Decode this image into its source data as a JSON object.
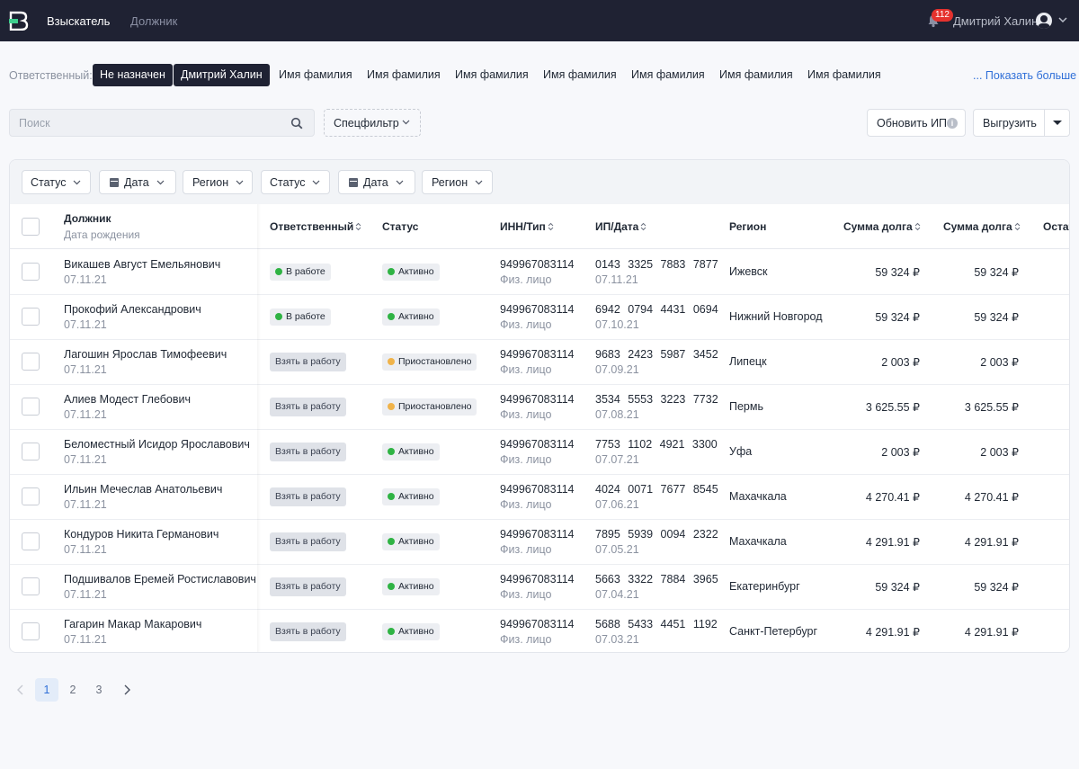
{
  "topbar": {
    "tab_active": "Взыскатель",
    "tab_inactive": "Должник",
    "notifications_count": "112",
    "user_name": "Дмитрий Халин"
  },
  "responsible": {
    "label": "Ответственный:",
    "chips": [
      "Не назначен",
      "Дмитрий Халин",
      "Имя фамилия",
      "Имя фамилия",
      "Имя фамилия",
      "Имя фамилия",
      "Имя фамилия",
      "Имя фамилия",
      "Имя фамилия"
    ],
    "show_more": "... Показать больше"
  },
  "search": {
    "placeholder": "Поиск"
  },
  "specfilter_label": "Спецфильтр",
  "update_button": "Обновить ИП",
  "export_button": "Выгрузить",
  "filters": [
    "Статус",
    "Дата",
    "Регион",
    "Статус",
    "Дата",
    "Регион"
  ],
  "columns": {
    "debtor": "Должник",
    "dob": "Дата рождения",
    "responsible": "Ответственный",
    "status": "Статус",
    "inn": "ИНН/Тип",
    "ip": "ИП/Дата",
    "region": "Регион",
    "sum1": "Сумма долга",
    "sum2": "Сумма долга",
    "remainder": "Остат"
  },
  "rows": [
    {
      "name": "Викашев Август Емельянович",
      "dob": "07.11.21",
      "responsible": "В работе",
      "status": "Активно",
      "inn": "949967083114",
      "type": "Физ. лицо",
      "ip": "0143 3325 7883 7877",
      "ip_date": "07.11.21",
      "region": "Ижевск",
      "sum1": "59 324 ₽",
      "sum2": "59 324 ₽"
    },
    {
      "name": "Прокофий Александрович",
      "dob": "07.11.21",
      "responsible": "В работе",
      "status": "Активно",
      "inn": "949967083114",
      "type": "Физ. лицо",
      "ip": "6942 0794 4431 0694",
      "ip_date": "07.10.21",
      "region": "Нижний Новгород",
      "sum1": "59 324 ₽",
      "sum2": "59 324 ₽"
    },
    {
      "name": "Лагошин Ярослав Тимофеевич",
      "dob": "07.11.21",
      "responsible": "Взять в работу",
      "status": "Приостановлено",
      "inn": "949967083114",
      "type": "Физ. лицо",
      "ip": "9683 2423 5987 3452",
      "ip_date": "07.09.21",
      "region": "Липецк",
      "sum1": "2 003 ₽",
      "sum2": "2 003 ₽"
    },
    {
      "name": "Алиев Модест Глебович",
      "dob": "07.11.21",
      "responsible": "Взять в работу",
      "status": "Приостановлено",
      "inn": "949967083114",
      "type": "Физ. лицо",
      "ip": "3534 5553 3223 7732",
      "ip_date": "07.08.21",
      "region": "Пермь",
      "sum1": "3 625.55 ₽",
      "sum2": "3 625.55 ₽"
    },
    {
      "name": "Беломестный Исидор Ярославович",
      "dob": "07.11.21",
      "responsible": "Взять в работу",
      "status": "Активно",
      "inn": "949967083114",
      "type": "Физ. лицо",
      "ip": "7753 1102 4921 3300",
      "ip_date": "07.07.21",
      "region": "Уфа",
      "sum1": "2 003 ₽",
      "sum2": "2 003 ₽"
    },
    {
      "name": "Ильин Мечеслав Анатольевич",
      "dob": "07.11.21",
      "responsible": "Взять в работу",
      "status": "Активно",
      "inn": "949967083114",
      "type": "Физ. лицо",
      "ip": "4024 0071 7677 8545",
      "ip_date": "07.06.21",
      "region": "Махачкала",
      "sum1": "4 270.41 ₽",
      "sum2": "4 270.41 ₽"
    },
    {
      "name": "Кондуров Никита Германович",
      "dob": "07.11.21",
      "responsible": "Взять в работу",
      "status": "Активно",
      "inn": "949967083114",
      "type": "Физ. лицо",
      "ip": "7895 5939 0094 2322",
      "ip_date": "07.05.21",
      "region": "Махачкала",
      "sum1": "4 291.91 ₽",
      "sum2": "4 291.91 ₽"
    },
    {
      "name": "Подшивалов Еремей Ростиславович",
      "dob": "07.11.21",
      "responsible": "Взять в работу",
      "status": "Активно",
      "inn": "949967083114",
      "type": "Физ. лицо",
      "ip": "5663 3322 7884 3965",
      "ip_date": "07.04.21",
      "region": "Екатеринбург",
      "sum1": "59 324 ₽",
      "sum2": "59 324 ₽"
    },
    {
      "name": "Гагарин Макар Макарович",
      "dob": "07.11.21",
      "responsible": "Взять в работу",
      "status": "Активно",
      "inn": "949967083114",
      "type": "Физ. лицо",
      "ip": "5688 5433 4451 1192",
      "ip_date": "07.03.21",
      "region": "Санкт-Петербург",
      "sum1": "4 291.91 ₽",
      "sum2": "4 291.91 ₽"
    }
  ],
  "pagination": {
    "pages": [
      "1",
      "2",
      "3"
    ],
    "current": "1"
  },
  "colors": {
    "topbar": "#1f2233",
    "active_dot": "#2fb344",
    "paused_dot": "#f0b34a",
    "badge_red": "#e5322e",
    "link": "#2f6fd8"
  }
}
